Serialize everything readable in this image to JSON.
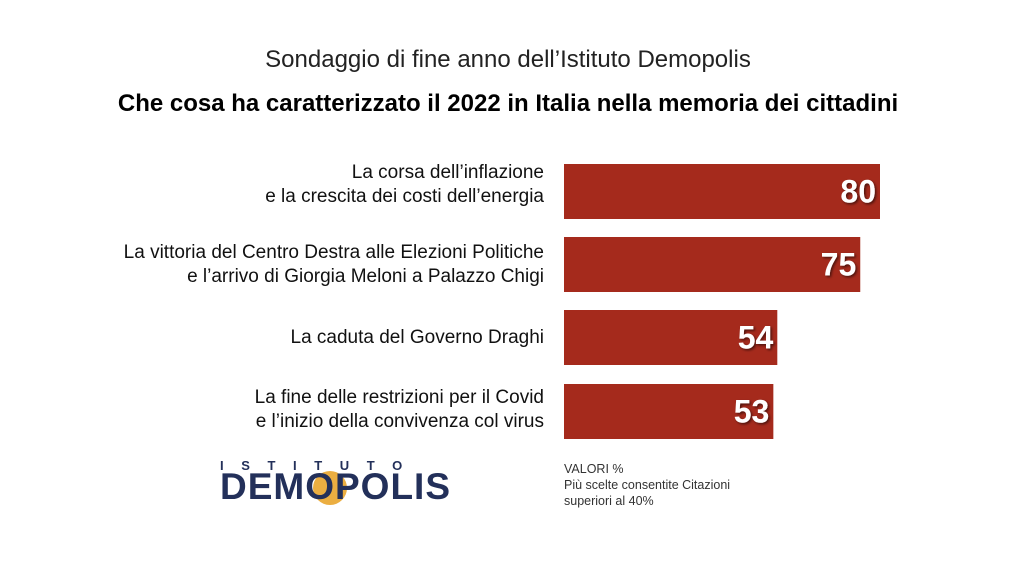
{
  "header": {
    "subtitle": "Sondaggio di fine anno dell’Istituto Demopolis",
    "title": "Che cosa ha caratterizzato il 2022 in Italia nella memoria dei cittadini"
  },
  "chart_data": {
    "type": "bar",
    "orientation": "horizontal",
    "title": "Che cosa ha caratterizzato il 2022 in Italia nella memoria dei cittadini",
    "categories": [
      [
        "La corsa dell’inflazione",
        "e la crescita dei costi dell’energia"
      ],
      [
        "La vittoria del Centro Destra alle Elezioni Politiche",
        "e l’arrivo di Giorgia Meloni a Palazzo Chigi"
      ],
      [
        "La caduta del Governo Draghi"
      ],
      [
        "La fine delle restrizioni per il Covid",
        "e l’inizio della convivenza col virus"
      ]
    ],
    "values": [
      80,
      75,
      54,
      53
    ],
    "xlim": [
      0,
      100
    ],
    "unit": "%",
    "bar_color": "#a52a1c",
    "value_label_color": "#ffffff",
    "grid": false
  },
  "logo": {
    "top_text": "ISTITUTO",
    "main_text": "DEMOPOLIS",
    "color": "#23305a",
    "accent": "#e8a020"
  },
  "note": {
    "line1": "VALORI %",
    "line2": "Più scelte consentite Citazioni",
    "line3": "superiori al 40%"
  }
}
